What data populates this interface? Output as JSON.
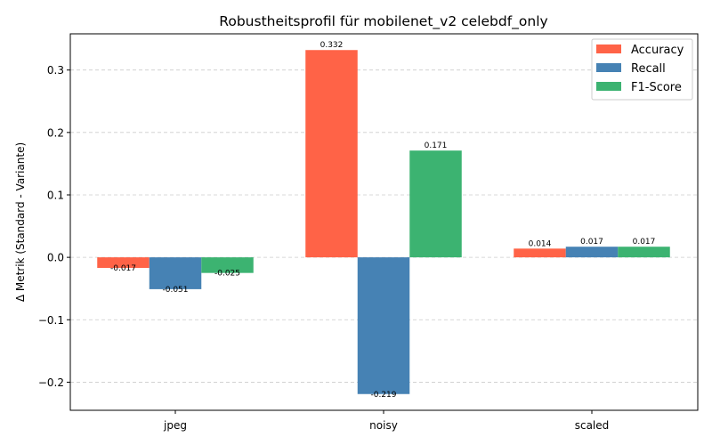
{
  "chart_data": {
    "type": "bar",
    "title": "Robustheitsprofil für mobilenet_v2 celebdf_only",
    "xlabel": "",
    "ylabel": "Δ Metrik (Standard - Variante)",
    "categories": [
      "jpeg",
      "noisy",
      "scaled"
    ],
    "series": [
      {
        "name": "Accuracy",
        "color": "#ff6347",
        "values": [
          -0.017,
          0.332,
          0.014
        ],
        "labels": [
          "-0.017",
          "0.332",
          "0.014"
        ]
      },
      {
        "name": "Recall",
        "color": "#4682b4",
        "values": [
          -0.051,
          -0.219,
          0.017
        ],
        "labels": [
          "-0.051",
          "-0.219",
          "0.017"
        ]
      },
      {
        "name": "F1-Score",
        "color": "#3cb371",
        "values": [
          -0.025,
          0.171,
          0.017
        ],
        "labels": [
          "-0.025",
          "0.171",
          "0.017"
        ]
      }
    ],
    "ylim": [
      -0.245,
      0.358
    ],
    "yticks": [
      -0.2,
      -0.1,
      0.0,
      0.1,
      0.2,
      0.3
    ],
    "ytick_labels": [
      "−0.2",
      "−0.1",
      "0.0",
      "0.1",
      "0.2",
      "0.3"
    ],
    "grid": "y-dashed",
    "legend_position": "top-right"
  }
}
